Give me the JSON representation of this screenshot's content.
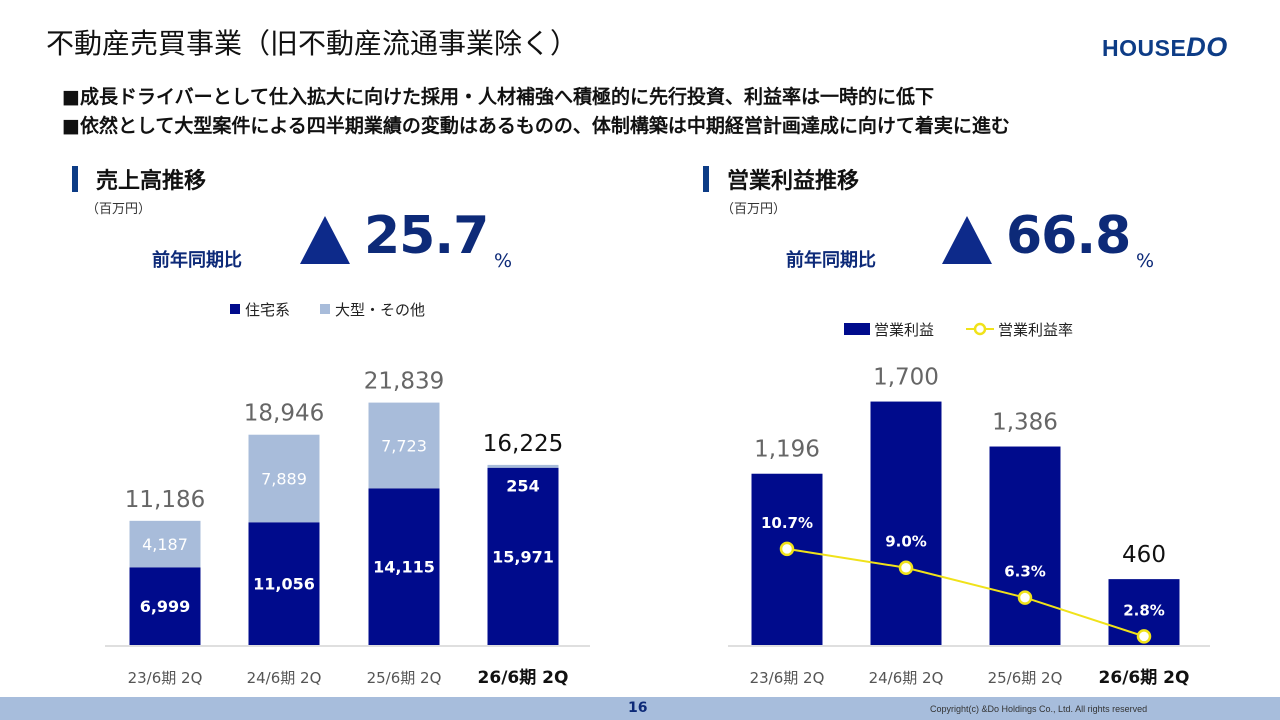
{
  "header": {
    "title": "不動産売買事業（旧不動産流通事業除く）",
    "logo_main": "HOUSE",
    "logo_accent": "DO"
  },
  "bullets": [
    "■成長ドライバーとして仕入拡大に向けた採用・人材補強へ積極的に先行投資、利益率は一時的に低下",
    "■依然として大型案件による四半期業績の変動はあるものの、体制構築は中期経営計画達成に向けて着実に進む"
  ],
  "left_panel": {
    "title": "売上高推移",
    "unit": "（百万円）",
    "yoy_label": "前年同期比",
    "yoy_value": "25.7",
    "yoy_pct": "%"
  },
  "right_panel": {
    "title": "営業利益推移",
    "unit": "（百万円）",
    "yoy_label": "前年同期比",
    "yoy_value": "66.8",
    "yoy_pct": "%"
  },
  "colors": {
    "navy": "#000b8c",
    "light": "#a8bcda",
    "line": "#f0e21a",
    "accent": "#0d2a78"
  },
  "chart_data": [
    {
      "type": "bar",
      "stacked": true,
      "categories": [
        "23/6期 2Q",
        "24/6期 2Q",
        "25/6期 2Q",
        "26/6期 2Q"
      ],
      "highlight_category": "26/6期 2Q",
      "series": [
        {
          "name": "住宅系",
          "values": [
            6999,
            11056,
            14115,
            15971
          ],
          "labels": [
            "6,999",
            "11,056",
            "14,115",
            "15,971"
          ]
        },
        {
          "name": "大型・その他",
          "values": [
            4187,
            7889,
            7723,
            254
          ],
          "labels": [
            "4,187",
            "7,889",
            "7,723",
            "254"
          ]
        }
      ],
      "totals": [
        "11,186",
        "18,946",
        "21,839",
        "16,225"
      ],
      "legend": "top"
    },
    {
      "type": "bar",
      "categories": [
        "23/6期 2Q",
        "24/6期 2Q",
        "25/6期 2Q",
        "26/6期 2Q"
      ],
      "highlight_category": "26/6期 2Q",
      "series": [
        {
          "name": "営業利益",
          "type": "bar",
          "values": [
            1196,
            1700,
            1386,
            460
          ],
          "labels": [
            "1,196",
            "1,700",
            "1,386",
            "460"
          ]
        },
        {
          "name": "営業利益率",
          "type": "line",
          "values": [
            10.7,
            9.0,
            6.3,
            2.8
          ],
          "labels": [
            "10.7%",
            "9.0%",
            "6.3%",
            "2.8%"
          ]
        }
      ],
      "legend": "top"
    }
  ],
  "footer": {
    "page": "16",
    "copyright": "Copyright(c) &Do Holdings Co., Ltd. All rights reserved"
  }
}
